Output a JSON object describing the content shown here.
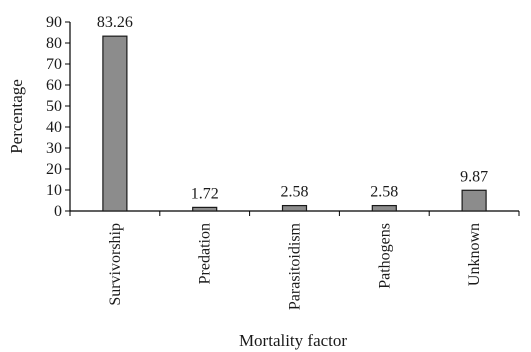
{
  "chart_data": {
    "type": "bar",
    "xlabel": "Mortality factor",
    "ylabel": "Percentage",
    "categories": [
      "Survivorship",
      "Predation",
      "Parasitoidism",
      "Pathogens",
      "Unknown"
    ],
    "values": [
      83.26,
      1.72,
      2.58,
      2.58,
      9.87
    ],
    "data_labels": [
      "83.26",
      "1.72",
      "2.58",
      "2.58",
      "9.87"
    ],
    "ylim": [
      0,
      90
    ],
    "yticks": [
      0,
      10,
      20,
      30,
      40,
      50,
      60,
      70,
      80,
      90
    ],
    "grid": false,
    "legend": "none",
    "bar_color": "#8c8c8c"
  }
}
